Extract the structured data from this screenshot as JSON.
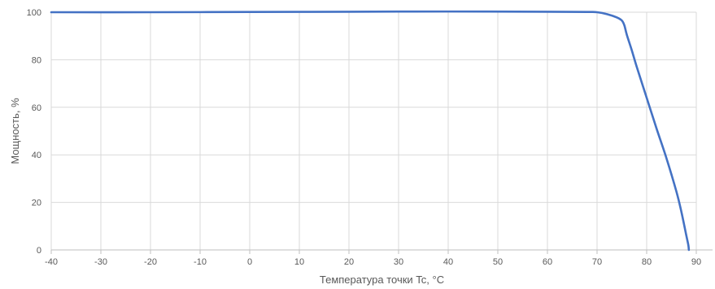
{
  "chart_data": {
    "type": "line",
    "title": "",
    "xlabel": "Температура точки Tc, °C",
    "ylabel": "Мощность, %",
    "xlim": [
      -40,
      90
    ],
    "ylim": [
      0,
      100
    ],
    "x_ticks": [
      "-40",
      "-30",
      "-20",
      "-10",
      "0",
      "10",
      "20",
      "30",
      "40",
      "50",
      "60",
      "70",
      "80",
      "90"
    ],
    "y_ticks": [
      "0",
      "20",
      "40",
      "60",
      "80",
      "100"
    ],
    "grid": true,
    "legend": "none",
    "series": [
      {
        "color": "#4472C4",
        "x": [
          -40,
          -20,
          0,
          20,
          40,
          60,
          68,
          70,
          72,
          74,
          75,
          75.5,
          76,
          77,
          78,
          80,
          82,
          84,
          86,
          87,
          88,
          88.4,
          88.5
        ],
        "values": [
          100,
          100,
          100.1,
          100.2,
          100.3,
          100.2,
          100.1,
          100,
          99.2,
          97.8,
          96.5,
          94.5,
          90.5,
          84,
          77,
          64,
          51,
          38.5,
          24.5,
          16,
          6,
          2,
          0
        ]
      }
    ]
  }
}
